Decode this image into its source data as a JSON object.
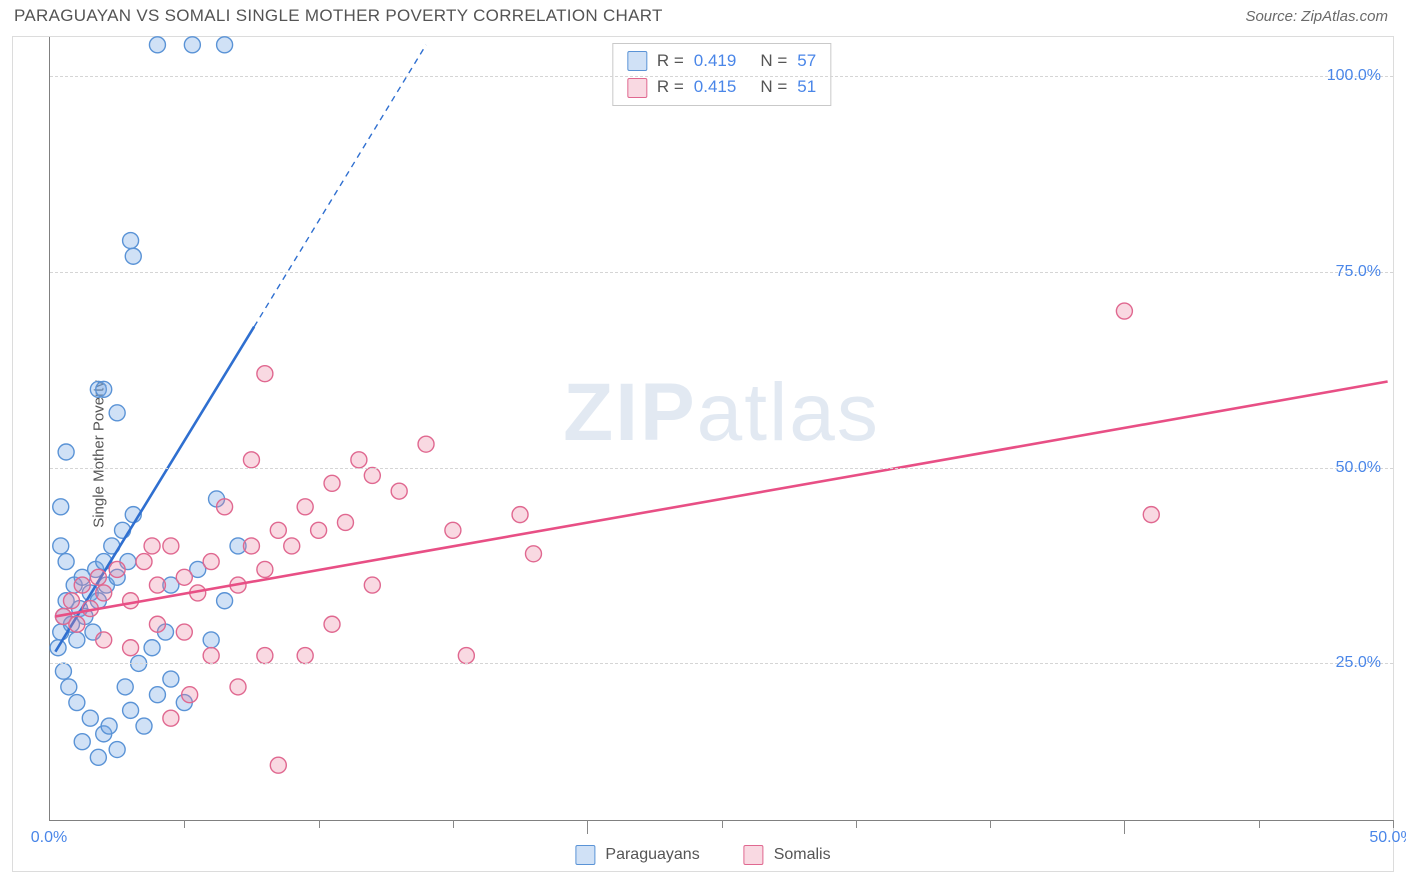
{
  "title": "PARAGUAYAN VS SOMALI SINGLE MOTHER POVERTY CORRELATION CHART",
  "source_label": "Source: ZipAtlas.com",
  "ylabel": "Single Mother Poverty",
  "watermark": {
    "bold": "ZIP",
    "rest": "atlas"
  },
  "colors": {
    "blue_fill": "rgba(120,170,230,0.35)",
    "blue_stroke": "#5a93d6",
    "pink_fill": "rgba(235,130,160,0.30)",
    "pink_stroke": "#e06890",
    "trend_blue": "#2f6fd0",
    "trend_pink": "#e84f85",
    "tick_label": "#4a86e8",
    "grid": "#d5d5d5",
    "axis": "#808080"
  },
  "chart": {
    "type": "scatter",
    "xlim": [
      0,
      50
    ],
    "ylim": [
      5,
      105
    ],
    "yticks": [
      {
        "v": 25,
        "label": "25.0%"
      },
      {
        "v": 50,
        "label": "50.0%"
      },
      {
        "v": 75,
        "label": "75.0%"
      },
      {
        "v": 100,
        "label": "100.0%"
      }
    ],
    "xticks_minor": [
      5,
      10,
      15,
      20,
      25,
      30,
      35,
      40,
      45,
      50
    ],
    "xticks_major": [
      20,
      40
    ],
    "xtick_labels": [
      {
        "v": 0,
        "label": "0.0%"
      },
      {
        "v": 50,
        "label": "50.0%"
      }
    ],
    "marker_radius": 8,
    "marker_stroke_width": 1.4,
    "trend_line_width": 2.6,
    "series": [
      {
        "name": "Paraguayans",
        "color_key": "blue",
        "R": "0.419",
        "N": "57",
        "trend": {
          "x1": 0.2,
          "y1": 26.5,
          "x2": 7.6,
          "y2": 68.0,
          "dashed_ext": {
            "x2": 14.0,
            "y2": 104.0
          }
        },
        "points": [
          [
            0.3,
            27
          ],
          [
            0.4,
            29
          ],
          [
            0.5,
            31
          ],
          [
            0.6,
            33
          ],
          [
            0.8,
            30
          ],
          [
            0.9,
            35
          ],
          [
            1.0,
            28
          ],
          [
            1.1,
            32
          ],
          [
            1.2,
            36
          ],
          [
            1.3,
            31
          ],
          [
            1.5,
            34
          ],
          [
            1.6,
            29
          ],
          [
            1.7,
            37
          ],
          [
            1.8,
            33
          ],
          [
            2.0,
            38
          ],
          [
            2.1,
            35
          ],
          [
            2.3,
            40
          ],
          [
            2.5,
            36
          ],
          [
            2.7,
            42
          ],
          [
            2.9,
            38
          ],
          [
            3.1,
            44
          ],
          [
            0.5,
            24
          ],
          [
            0.7,
            22
          ],
          [
            1.0,
            20
          ],
          [
            1.5,
            18
          ],
          [
            2.0,
            16
          ],
          [
            2.5,
            14
          ],
          [
            3.0,
            19
          ],
          [
            3.5,
            17
          ],
          [
            4.0,
            21
          ],
          [
            4.5,
            23
          ],
          [
            5.0,
            20
          ],
          [
            1.2,
            15
          ],
          [
            1.8,
            13
          ],
          [
            2.2,
            17
          ],
          [
            2.8,
            22
          ],
          [
            3.3,
            25
          ],
          [
            3.8,
            27
          ],
          [
            4.3,
            29
          ],
          [
            0.4,
            45
          ],
          [
            0.6,
            52
          ],
          [
            1.8,
            60
          ],
          [
            2.0,
            60
          ],
          [
            2.5,
            57
          ],
          [
            6.2,
            46
          ],
          [
            4.5,
            35
          ],
          [
            5.5,
            37
          ],
          [
            6.5,
            33
          ],
          [
            5.3,
            104
          ],
          [
            6.5,
            104
          ],
          [
            3.0,
            79
          ],
          [
            3.1,
            77
          ],
          [
            4.0,
            104
          ],
          [
            6.0,
            28
          ],
          [
            7.0,
            40
          ],
          [
            0.4,
            40
          ],
          [
            0.6,
            38
          ]
        ]
      },
      {
        "name": "Somalis",
        "color_key": "pink",
        "R": "0.415",
        "N": "51",
        "trend": {
          "x1": 0.2,
          "y1": 31.0,
          "x2": 49.8,
          "y2": 61.0
        },
        "points": [
          [
            0.5,
            31
          ],
          [
            0.8,
            33
          ],
          [
            1.0,
            30
          ],
          [
            1.2,
            35
          ],
          [
            1.5,
            32
          ],
          [
            1.8,
            36
          ],
          [
            2.0,
            34
          ],
          [
            2.5,
            37
          ],
          [
            3.0,
            33
          ],
          [
            3.5,
            38
          ],
          [
            4.0,
            35
          ],
          [
            4.5,
            40
          ],
          [
            5.0,
            36
          ],
          [
            5.5,
            34
          ],
          [
            6.0,
            38
          ],
          [
            7.0,
            35
          ],
          [
            7.5,
            40
          ],
          [
            8.0,
            37
          ],
          [
            8.5,
            42
          ],
          [
            9.0,
            40
          ],
          [
            9.5,
            45
          ],
          [
            10.0,
            42
          ],
          [
            10.5,
            48
          ],
          [
            11.0,
            43
          ],
          [
            11.5,
            51
          ],
          [
            12.0,
            49
          ],
          [
            13.0,
            47
          ],
          [
            14.0,
            53
          ],
          [
            15.0,
            42
          ],
          [
            8.0,
            62
          ],
          [
            2.0,
            28
          ],
          [
            3.0,
            27
          ],
          [
            4.0,
            30
          ],
          [
            5.0,
            29
          ],
          [
            4.5,
            18
          ],
          [
            5.2,
            21
          ],
          [
            6.0,
            26
          ],
          [
            7.0,
            22
          ],
          [
            8.0,
            26
          ],
          [
            9.5,
            26
          ],
          [
            10.5,
            30
          ],
          [
            12.0,
            35
          ],
          [
            8.5,
            12
          ],
          [
            15.5,
            26
          ],
          [
            18.0,
            39
          ],
          [
            17.5,
            44
          ],
          [
            40.0,
            70
          ],
          [
            41.0,
            44
          ],
          [
            7.5,
            51
          ],
          [
            6.5,
            45
          ],
          [
            3.8,
            40
          ]
        ]
      }
    ]
  },
  "bottom_legend": [
    {
      "label": "Paraguayans",
      "color_key": "blue"
    },
    {
      "label": "Somalis",
      "color_key": "pink"
    }
  ]
}
